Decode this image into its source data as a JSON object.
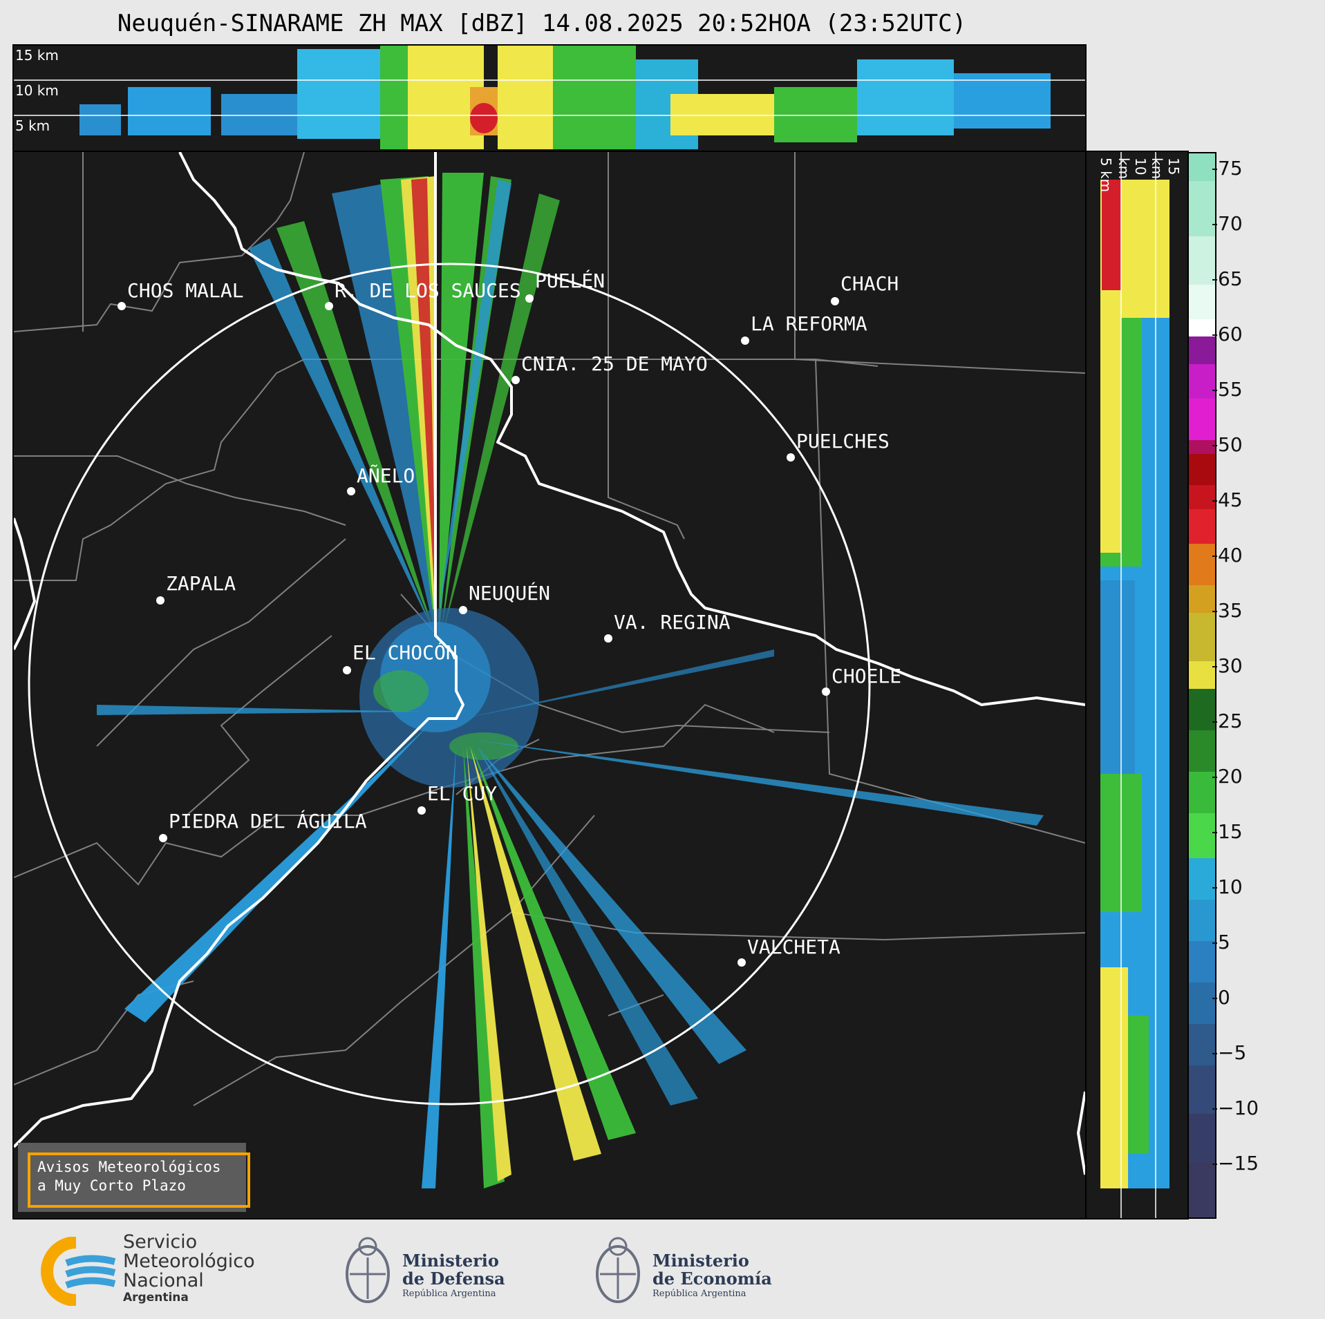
{
  "title": "Neuquén-SINARAME ZH MAX [dBZ] 14.08.2025 20:52HOA (23:52UTC)",
  "top_panel": {
    "height_labels": [
      "15 km",
      "10 km",
      "5 km"
    ]
  },
  "side_panel": {
    "height_labels": [
      "5 km",
      "10 km",
      "15 km"
    ]
  },
  "colorbar": {
    "unit": "dBZ",
    "ticks": [
      "75",
      "70",
      "65",
      "60",
      "55",
      "50",
      "45",
      "40",
      "35",
      "30",
      "25",
      "20",
      "15",
      "10",
      "5",
      "0",
      "−5",
      "−10",
      "−15"
    ]
  },
  "cities": [
    {
      "name": "CHOS MALAL"
    },
    {
      "name": "R. DE LOS SAUCES"
    },
    {
      "name": "PUELÉN"
    },
    {
      "name": "CHACH"
    },
    {
      "name": "LA REFORMA"
    },
    {
      "name": "CNIA. 25 DE MAYO"
    },
    {
      "name": "PUELCHES"
    },
    {
      "name": "AÑELO"
    },
    {
      "name": "ZAPALA"
    },
    {
      "name": "NEUQUÉN"
    },
    {
      "name": "VA. REGINA"
    },
    {
      "name": "EL CHOCÓN"
    },
    {
      "name": "CHOELE"
    },
    {
      "name": "EL CUY"
    },
    {
      "name": "PIEDRA DEL ÁGUILA"
    },
    {
      "name": "VALCHETA"
    }
  ],
  "warning_box": {
    "line1": "Avisos Meteorológicos",
    "line2": "a Muy Corto Plazo"
  },
  "logos": {
    "smn": {
      "line1": "Servicio",
      "line2": "Meteorológico",
      "line3": "Nacional",
      "line4": "Argentina"
    },
    "defensa": {
      "line1": "Ministerio",
      "line2": "de Defensa",
      "line3": "República Argentina"
    },
    "economia": {
      "line1": "Ministerio",
      "line2": "de Economía",
      "line3": "República Argentina"
    }
  },
  "colors": {
    "background": "#1a1a1a",
    "range_ring": "#ffffff",
    "coast_river": "#ffffff",
    "borders": "#808080",
    "warning_border": "#f5a300"
  }
}
